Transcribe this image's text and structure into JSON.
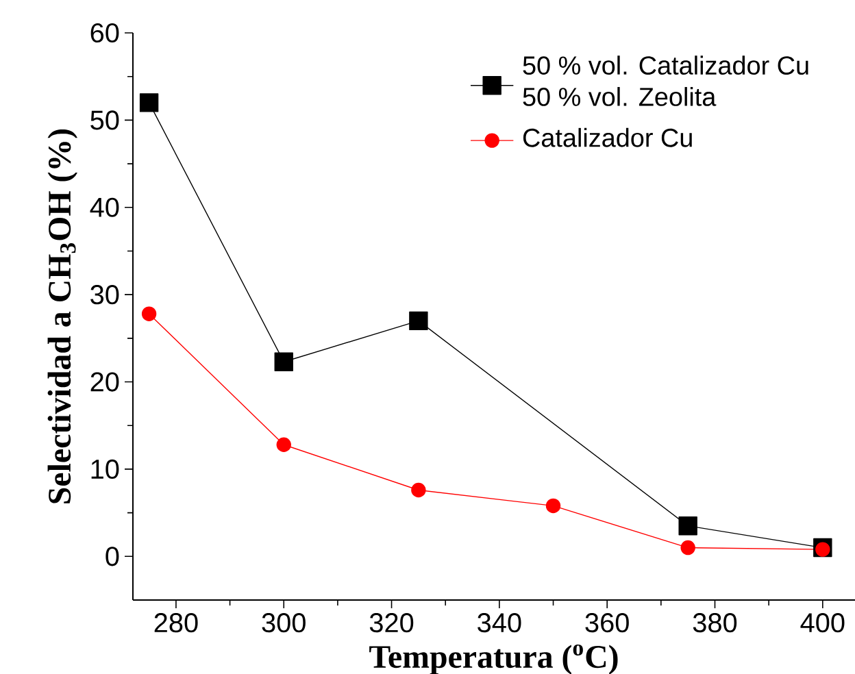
{
  "chart_data": {
    "type": "line",
    "xlabel": "Temperatura ($^{o}$C)",
    "ylabel": "Selectividad a CH$_{3}$OH (%)",
    "xlim": [
      272,
      406
    ],
    "ylim": [
      -5,
      60
    ],
    "xticks": [
      280,
      300,
      320,
      340,
      360,
      380,
      400
    ],
    "yticks": [
      0,
      10,
      20,
      30,
      40,
      50,
      60
    ],
    "legend": "top right",
    "grid": false,
    "series": [
      {
        "name": "50 % vol. Catalizador Cu 50 % vol. Zeolita",
        "color": "#000000",
        "marker": "square",
        "x": [
          275,
          300,
          325,
          375,
          400
        ],
        "values": [
          52,
          22.3,
          27,
          3.5,
          1
        ]
      },
      {
        "name": "Catalizador Cu",
        "color": "#ff0000",
        "marker": "circle",
        "x": [
          275,
          300,
          325,
          350,
          375,
          400
        ],
        "values": [
          27.8,
          12.8,
          7.6,
          5.8,
          1,
          0.8
        ]
      }
    ]
  }
}
